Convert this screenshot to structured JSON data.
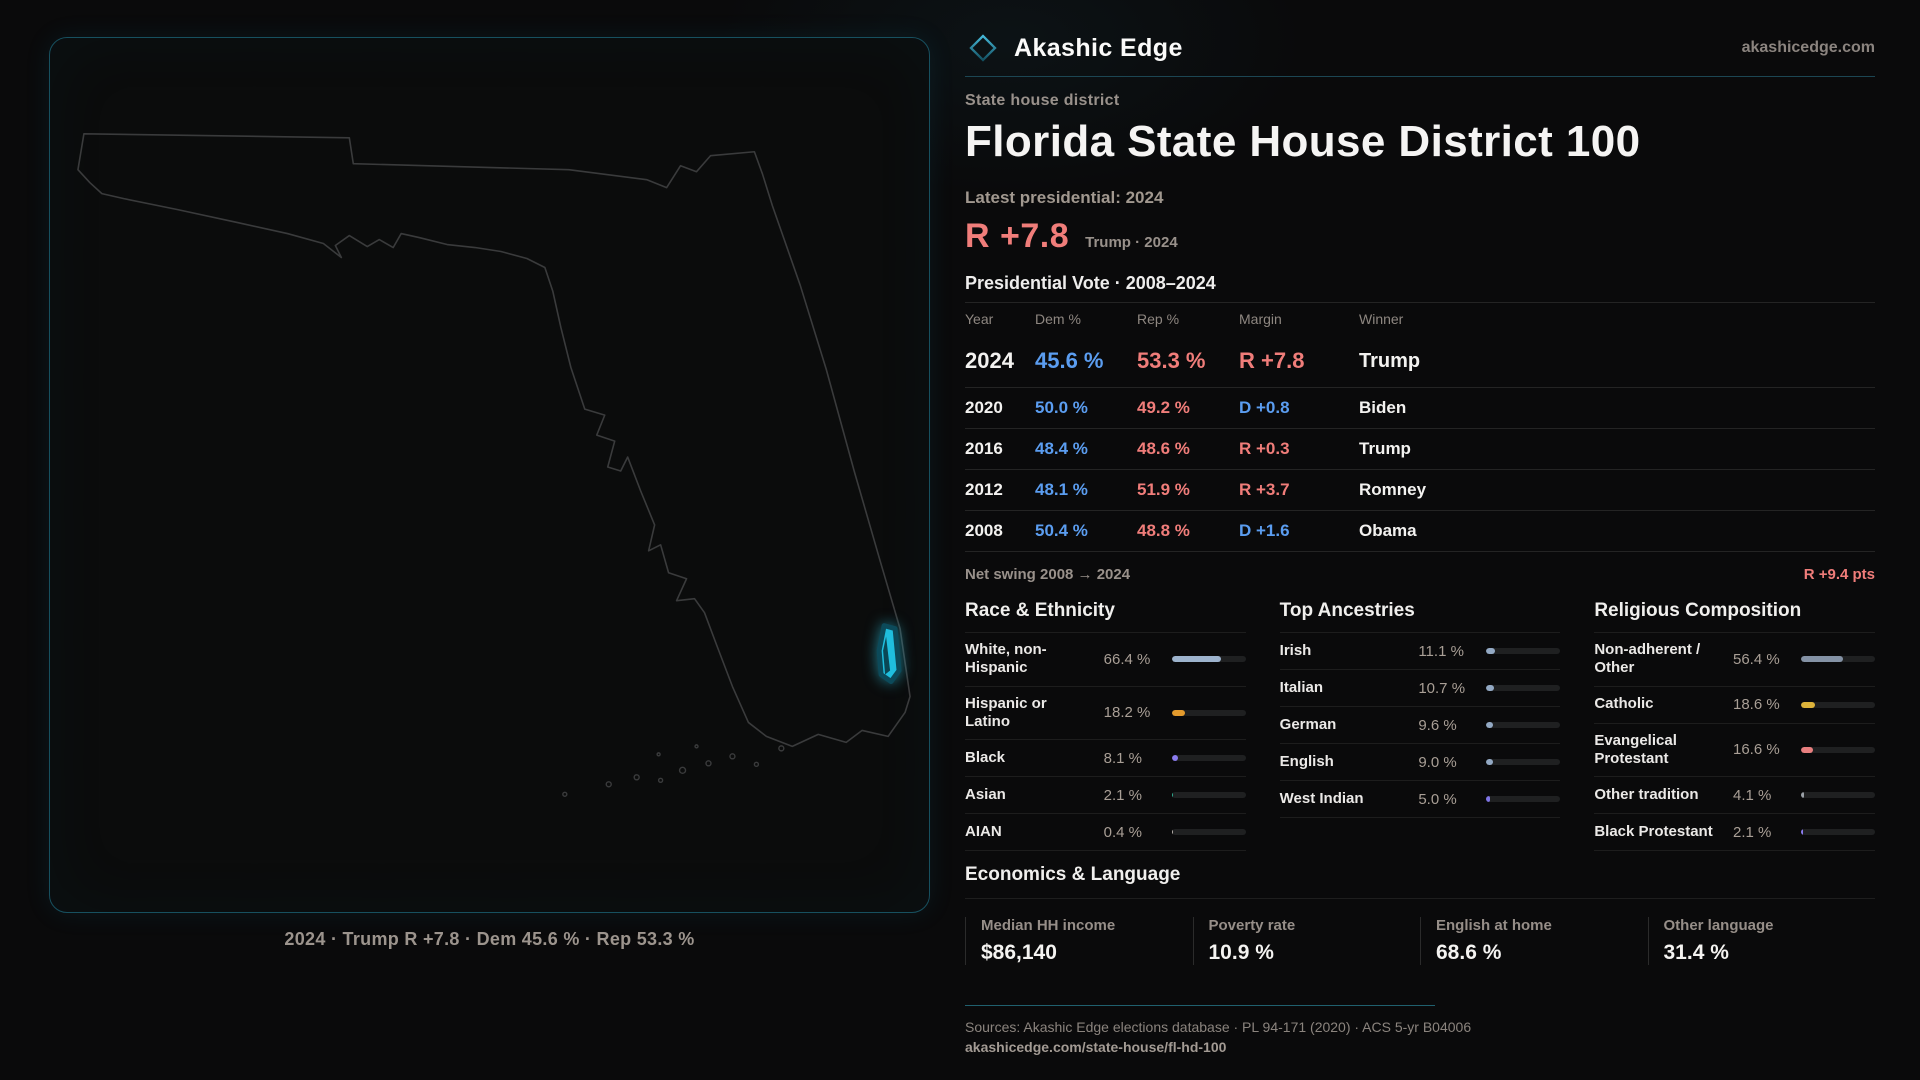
{
  "brand": {
    "name": "Akashic Edge",
    "domain": "akashicedge.com",
    "logo_icon": "diamond-icon"
  },
  "map": {
    "caption": "2024 · Trump R +7.8 · Dem 45.6 % · Rep 53.3 %",
    "outline_color": "#3a3b3c",
    "highlight_fill": "#25c6e8",
    "highlight_glow": "#0c4a5a",
    "panel_border": "#17505f"
  },
  "header": {
    "kicker": "State house district",
    "title": "Florida State House District 100",
    "latest_label": "Latest presidential: 2024",
    "headline_margin": "R +7.8",
    "headline_sub": "Trump · 2024"
  },
  "colors": {
    "dem": "#5b9df0",
    "rep": "#f07d7a",
    "accent_teal": "#2ba4c6"
  },
  "table": {
    "title": "Presidential Vote · 2008–2024",
    "columns": [
      "Year",
      "Dem %",
      "Rep %",
      "Margin",
      "Winner"
    ],
    "rows": [
      {
        "year": "2024",
        "dem": "45.6 %",
        "rep": "53.3 %",
        "margin": "R +7.8",
        "margin_party": "R",
        "winner": "Trump",
        "featured": true
      },
      {
        "year": "2020",
        "dem": "50.0 %",
        "rep": "49.2 %",
        "margin": "D +0.8",
        "margin_party": "D",
        "winner": "Biden",
        "featured": false
      },
      {
        "year": "2016",
        "dem": "48.4 %",
        "rep": "48.6 %",
        "margin": "R +0.3",
        "margin_party": "R",
        "winner": "Trump",
        "featured": false
      },
      {
        "year": "2012",
        "dem": "48.1 %",
        "rep": "51.9 %",
        "margin": "R +3.7",
        "margin_party": "R",
        "winner": "Romney",
        "featured": false
      },
      {
        "year": "2008",
        "dem": "50.4 %",
        "rep": "48.8 %",
        "margin": "D +1.6",
        "margin_party": "D",
        "winner": "Obama",
        "featured": false
      }
    ]
  },
  "net_swing": {
    "label": "Net swing 2008 → 2024",
    "value": "R +9.4 pts",
    "party": "R"
  },
  "demographics": {
    "sections": [
      {
        "title": "Race & Ethnicity",
        "rows": [
          {
            "label": "White, non-Hispanic",
            "value": "66.4 %",
            "pct": 66.4,
            "color": "#9db3cd"
          },
          {
            "label": "Hispanic or Latino",
            "value": "18.2 %",
            "pct": 18.2,
            "color": "#e49b2d"
          },
          {
            "label": "Black",
            "value": "8.1 %",
            "pct": 8.1,
            "color": "#8b7cf0"
          },
          {
            "label": "Asian",
            "value": "2.1 %",
            "pct": 2.1,
            "color": "#2fae92"
          },
          {
            "label": "AIAN",
            "value": "0.4 %",
            "pct": 0.4,
            "color": "#b9b3ad"
          }
        ]
      },
      {
        "title": "Top Ancestries",
        "rows": [
          {
            "label": "Irish",
            "value": "11.1 %",
            "pct": 11.1,
            "color": "#93a9c4"
          },
          {
            "label": "Italian",
            "value": "10.7 %",
            "pct": 10.7,
            "color": "#93a9c4"
          },
          {
            "label": "German",
            "value": "9.6 %",
            "pct": 9.6,
            "color": "#93a9c4"
          },
          {
            "label": "English",
            "value": "9.0 %",
            "pct": 9.0,
            "color": "#93a9c4"
          },
          {
            "label": "West Indian",
            "value": "5.0 %",
            "pct": 5.0,
            "color": "#7f75e6"
          }
        ]
      },
      {
        "title": "Religious Composition",
        "rows": [
          {
            "label": "Non-adherent / Other",
            "value": "56.4 %",
            "pct": 56.4,
            "color": "#8492a5"
          },
          {
            "label": "Catholic",
            "value": "18.6 %",
            "pct": 18.6,
            "color": "#ddb33a"
          },
          {
            "label": "Evangelical Protestant",
            "value": "16.6 %",
            "pct": 16.6,
            "color": "#e87f7f"
          },
          {
            "label": "Other tradition",
            "value": "4.1 %",
            "pct": 4.1,
            "color": "#9aa0a6"
          },
          {
            "label": "Black Protestant",
            "value": "2.1 %",
            "pct": 2.1,
            "color": "#8b7cf0"
          }
        ]
      }
    ]
  },
  "economics": {
    "title": "Economics & Language",
    "stats": [
      {
        "label": "Median HH income",
        "value": "$86,140"
      },
      {
        "label": "Poverty rate",
        "value": "10.9 %"
      },
      {
        "label": "English at home",
        "value": "68.6 %"
      },
      {
        "label": "Other language",
        "value": "31.4 %"
      }
    ]
  },
  "footer": {
    "sources": "Sources: Akashic Edge elections database · PL 94-171 (2020) · ACS 5-yr B04006",
    "url": "akashicedge.com/state-house/fl-hd-100"
  }
}
